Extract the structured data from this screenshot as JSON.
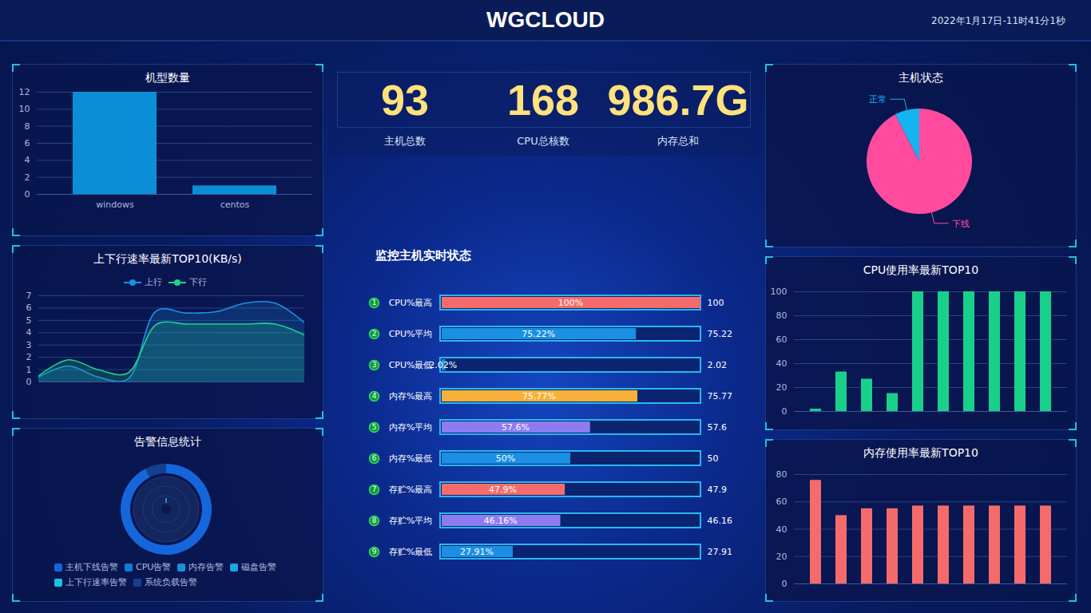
{
  "header": {
    "title": "WGCLOUD",
    "datetime": "2022年1月17日-11时41分1秒"
  },
  "stats": [
    {
      "value": 93,
      "label": "主机总数"
    },
    {
      "value": 168,
      "label": "CPU总核数"
    },
    {
      "value": 986.7,
      "value_label": "986.7G",
      "label": "内存总和"
    }
  ],
  "chart_data": [
    {
      "type": "bar",
      "title": "机型数量",
      "categories": [
        "windows",
        "centos"
      ],
      "values": [
        12,
        1
      ],
      "color": "#0a8fd6",
      "ylim": [
        0,
        12
      ],
      "yticks": [
        0,
        2,
        4,
        6,
        8,
        10,
        12
      ],
      "grid": true
    },
    {
      "type": "line",
      "title": "上下行速率最新TOP10(KB/s)",
      "categories": [
        null,
        null,
        null,
        null,
        null,
        null,
        null,
        null,
        null,
        null
      ],
      "series": [
        {
          "name": "上行",
          "color": "#1a8fe3",
          "values": [
            0.4,
            1.3,
            0.4,
            0.2,
            5.8,
            5.6,
            5.7,
            6.4,
            6.4,
            4.8
          ]
        },
        {
          "name": "下行",
          "color": "#1ed28a",
          "values": [
            0.5,
            1.8,
            1.0,
            0.7,
            4.7,
            4.7,
            4.7,
            4.7,
            4.7,
            3.8
          ]
        }
      ],
      "ylim": [
        0,
        7
      ],
      "yticks": [
        0,
        1,
        2,
        3,
        4,
        5,
        6,
        7
      ],
      "grid": true,
      "legend": "top",
      "tick_labels": "y"
    },
    {
      "type": "donut",
      "title": "告警信息统计",
      "categories": [
        "主机下线告警",
        "CPU告警",
        "内存告警",
        "磁盘告警",
        "上下行速率告警",
        "系统负载告警"
      ],
      "values": [
        86,
        0,
        0,
        0,
        0,
        7
      ],
      "colors": [
        "#1566da",
        "#0f7bd6",
        "#1a90d8",
        "#17a8e0",
        "#1cc2e2",
        "#14408f"
      ],
      "legend": "bottom"
    },
    {
      "type": "bar",
      "orientation": "horizontal",
      "title": "监控主机实时状态",
      "categories": [
        "CPU%最高",
        "CPU%平均",
        "CPU%最低",
        "内存%最高",
        "内存%平均",
        "内存%最低",
        "存贮%最高",
        "存贮%平均",
        "存贮%最低"
      ],
      "ranks": [
        1,
        2,
        3,
        4,
        5,
        6,
        7,
        8,
        9
      ],
      "values": [
        100,
        75.22,
        2.02,
        75.77,
        57.6,
        50,
        47.9,
        46.16,
        27.91
      ],
      "value_labels": [
        "100%",
        "75.22%",
        "2.02%",
        "75.77%",
        "57.6%",
        "50%",
        "47.9%",
        "46.16%",
        "27.91%"
      ],
      "colors": [
        "#f56b6b",
        "#1a8fe3",
        "#1a8fe3",
        "#f7b13a",
        "#8c7cf0",
        "#1a8fe3",
        "#f56b6b",
        "#8c7cf0",
        "#1a8fe3"
      ],
      "xlim": [
        0,
        100
      ],
      "data_labels": true,
      "tick_labels": false
    },
    {
      "type": "pie",
      "title": "主机状态",
      "categories": [
        "下线",
        "正常"
      ],
      "values": [
        86,
        7
      ],
      "colors": [
        "#ff4a9e",
        "#14b4f0"
      ]
    },
    {
      "type": "bar",
      "title": "CPU使用率最新TOP10",
      "categories": [
        null,
        null,
        null,
        null,
        null,
        null,
        null,
        null,
        null,
        null
      ],
      "values": [
        2.02,
        33,
        27,
        15,
        100,
        100,
        100,
        100,
        100,
        100
      ],
      "color": "#19d08b",
      "ylim": [
        0,
        100
      ],
      "yticks": [
        0,
        20,
        40,
        60,
        80,
        100
      ],
      "grid": true,
      "tick_labels": "y"
    },
    {
      "type": "bar",
      "title": "内存使用率最新TOP10",
      "categories": [
        null,
        null,
        null,
        null,
        null,
        null,
        null,
        null,
        null,
        null
      ],
      "values": [
        75.77,
        50,
        55,
        55,
        57,
        57,
        57,
        57,
        57,
        57
      ],
      "color": "#f56b6b",
      "ylim": [
        0,
        80
      ],
      "yticks": [
        0,
        20,
        40,
        60,
        80
      ],
      "grid": true,
      "tick_labels": "y"
    }
  ]
}
